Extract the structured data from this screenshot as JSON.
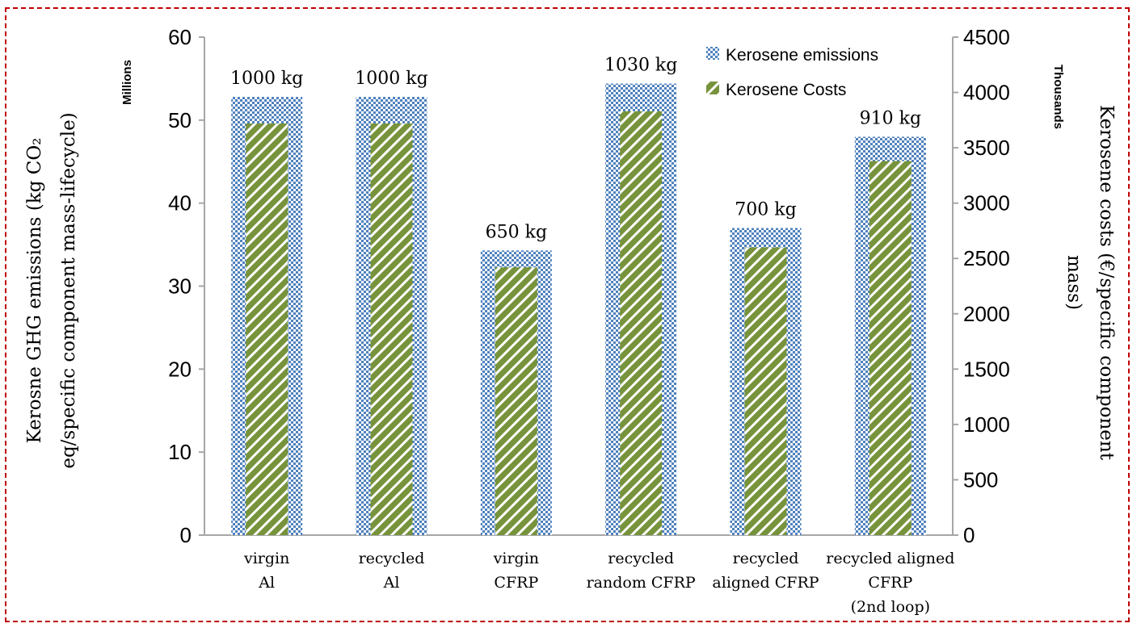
{
  "chart_data": {
    "type": "bar",
    "categories": [
      [
        "virgin",
        "Al"
      ],
      [
        "recycled",
        "Al"
      ],
      [
        "virgin",
        "CFRP"
      ],
      [
        "recycled",
        "random CFRP"
      ],
      [
        "recycled",
        "aligned CFRP"
      ],
      [
        "recycled aligned",
        "CFRP",
        "(2nd loop)"
      ]
    ],
    "mass_labels": [
      "1000 kg",
      "1000 kg",
      "650 kg",
      "1030 kg",
      "700 kg",
      "910 kg"
    ],
    "series": [
      {
        "name": "Kerosene emissions",
        "axis": "left",
        "values": [
          52.8,
          52.8,
          34.3,
          54.4,
          37.0,
          48.0
        ]
      },
      {
        "name": "Kerosene Costs",
        "axis": "right",
        "values": [
          3720,
          3720,
          2420,
          3830,
          2600,
          3380
        ]
      }
    ],
    "y_left": {
      "label_lines": [
        "Kerosne GHG emissions (kg CO₂",
        "eq/specific component mass-lifecycle)"
      ],
      "unit": "Millions",
      "ylim": [
        0,
        60
      ],
      "ticks": [
        "0",
        "10",
        "20",
        "30",
        "40",
        "50",
        "60"
      ]
    },
    "y_right": {
      "label_lines": [
        "Kerosene costs (€/specific component",
        "mass)"
      ],
      "unit": "Thousands",
      "ylim": [
        0,
        4500
      ],
      "ticks": [
        "0",
        "500",
        "1000",
        "1500",
        "2000",
        "2500",
        "3000",
        "3500",
        "4000",
        "4500"
      ]
    },
    "legend": {
      "position": "top-right"
    },
    "colors": {
      "emissions": "#4f81bd",
      "costs": "#77933c",
      "frame": "#c00000",
      "axis": "#a6a6a6"
    }
  }
}
